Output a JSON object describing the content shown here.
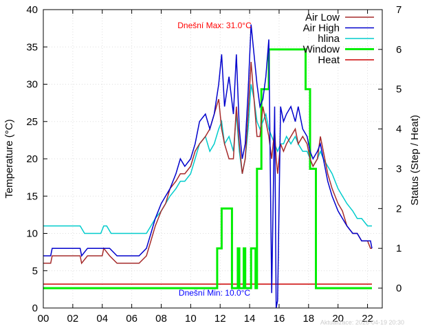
{
  "chart_data": {
    "type": "line",
    "x_axis": {
      "range": [
        0,
        23
      ],
      "ticks": [
        "00",
        "02",
        "04",
        "06",
        "08",
        "10",
        "12",
        "14",
        "16",
        "18",
        "20",
        "22"
      ],
      "tick_values": [
        0,
        2,
        4,
        6,
        8,
        10,
        12,
        14,
        16,
        18,
        20,
        22
      ]
    },
    "y_axis_left": {
      "label": "Temperature (°C)",
      "range": [
        0,
        40
      ],
      "ticks": [
        0,
        5,
        10,
        15,
        20,
        25,
        30,
        35,
        40
      ]
    },
    "y_axis_right": {
      "label": "Status (Step / Heat)",
      "range": [
        -0.5,
        7
      ],
      "ticks": [
        0,
        1,
        2,
        3,
        4,
        5,
        6,
        7
      ]
    },
    "grid": true,
    "legend_position": "top-right",
    "annotations": {
      "max_text": "Dnešní Max: 31.0°C",
      "min_text": "Dnešní Min: 10.0°C",
      "updated_text": "Aktualizace: 2026-04-19 20:30"
    },
    "series": [
      {
        "name": "Air Low",
        "axis": "left",
        "color": "#a52a2a",
        "width": 1.5,
        "x": [
          0,
          0.5,
          0.6,
          1,
          1.4,
          2,
          2.5,
          2.6,
          3,
          3.5,
          4,
          4.1,
          4.5,
          5,
          5.5,
          6,
          6.5,
          7,
          7.3,
          7.6,
          8,
          8.3,
          8.6,
          9,
          9.3,
          9.6,
          10,
          10.3,
          10.6,
          11,
          11.3,
          11.6,
          11.9,
          12.1,
          12.3,
          12.6,
          12.9,
          13.1,
          13.3,
          13.5,
          13.7,
          13.9,
          14.1,
          14.3,
          14.5,
          14.7,
          14.9,
          15.1,
          15.3,
          15.5,
          15.7,
          15.8,
          15.9,
          16.1,
          16.3,
          16.5,
          16.8,
          17.1,
          17.3,
          17.6,
          17.9,
          18.1,
          18.3,
          18.6,
          18.8,
          19,
          19.3,
          19.6,
          20,
          20.3,
          20.6,
          21,
          21.3,
          21.6,
          22,
          22.2,
          22.3
        ],
        "y": [
          6,
          6,
          7,
          7,
          7,
          7,
          7,
          6,
          7,
          7,
          7,
          8,
          7,
          6,
          6,
          6,
          6,
          7,
          9,
          11,
          13,
          14,
          16,
          17,
          18,
          18,
          19,
          21,
          22,
          23,
          24,
          26,
          28,
          24,
          22,
          20,
          20,
          27,
          22,
          18,
          20,
          26,
          33,
          28,
          23,
          23,
          27,
          25,
          23,
          20,
          24,
          20,
          18,
          22,
          21,
          22,
          23,
          24,
          22,
          23,
          22,
          20,
          19,
          20,
          23,
          21,
          18,
          16,
          14,
          13,
          11,
          10,
          10,
          9,
          9,
          8,
          8
        ]
      },
      {
        "name": "Air High",
        "axis": "left",
        "color": "#0000cc",
        "width": 1.5,
        "x": [
          0,
          0.5,
          0.6,
          1,
          1.4,
          2,
          2.5,
          2.6,
          3,
          3.5,
          4,
          4.1,
          4.5,
          5,
          5.5,
          6,
          6.5,
          7,
          7.3,
          7.6,
          8,
          8.3,
          8.6,
          9,
          9.3,
          9.6,
          10,
          10.3,
          10.6,
          11,
          11.3,
          11.6,
          11.9,
          12.1,
          12.3,
          12.6,
          12.9,
          13.1,
          13.3,
          13.5,
          13.7,
          13.9,
          14.1,
          14.3,
          14.5,
          14.7,
          14.9,
          15.1,
          15.3,
          15.5,
          15.7,
          15.8,
          15.9,
          16.1,
          16.3,
          16.5,
          16.8,
          17.1,
          17.3,
          17.6,
          17.9,
          18.1,
          18.3,
          18.6,
          18.8,
          19,
          19.3,
          19.6,
          20,
          20.3,
          20.6,
          21,
          21.3,
          21.6,
          22,
          22.2,
          22.3
        ],
        "y": [
          7,
          7,
          8,
          8,
          8,
          8,
          8,
          7,
          8,
          8,
          8,
          8,
          8,
          7,
          7,
          7,
          7,
          8,
          10,
          12,
          14,
          15,
          16,
          18,
          20,
          19,
          20,
          22,
          25,
          26,
          24,
          26,
          30,
          34,
          27,
          31,
          26,
          34,
          24,
          20,
          22,
          29,
          38,
          34,
          30,
          27,
          28,
          31,
          36,
          2,
          27,
          0,
          1,
          27,
          25,
          26,
          27,
          25,
          27,
          24,
          23,
          21,
          20,
          21,
          22,
          20,
          17,
          15,
          13,
          12,
          11,
          10,
          10,
          9,
          9,
          9,
          8
        ]
      },
      {
        "name": "hlina",
        "axis": "left",
        "color": "#00cccc",
        "width": 1.5,
        "x": [
          0,
          0.5,
          1,
          1.5,
          2,
          2.5,
          2.8,
          3.2,
          3.6,
          3.9,
          4.1,
          4.3,
          4.6,
          5,
          5.5,
          6,
          6.5,
          7,
          7.3,
          7.6,
          8,
          8.3,
          8.6,
          9,
          9.3,
          9.6,
          10,
          10.3,
          10.6,
          11,
          11.3,
          11.6,
          11.9,
          12.1,
          12.3,
          12.6,
          12.9,
          13.1,
          13.3,
          13.5,
          13.7,
          13.9,
          14.1,
          14.3,
          14.5,
          14.7,
          14.9,
          15.1,
          15.3,
          15.5,
          15.7,
          15.9,
          16.1,
          16.3,
          16.5,
          16.8,
          17.1,
          17.3,
          17.6,
          17.9,
          18.1,
          18.3,
          18.6,
          18.8,
          19,
          19.3,
          19.6,
          20,
          20.3,
          20.6,
          21,
          21.3,
          21.6,
          22,
          22.3
        ],
        "y": [
          11,
          11,
          11,
          11,
          11,
          11,
          10,
          10,
          10,
          10,
          11,
          11,
          10,
          10,
          10,
          10,
          10,
          10,
          11,
          12,
          13,
          14,
          15,
          16,
          17,
          17,
          18,
          20,
          22,
          23,
          21,
          22,
          24,
          25,
          22,
          23,
          21,
          26,
          21,
          18,
          20,
          24,
          30,
          28,
          25,
          24,
          25,
          26,
          24,
          23,
          22,
          21,
          22,
          22,
          23,
          22,
          23,
          22,
          21,
          21,
          20,
          19,
          20,
          21,
          20,
          19,
          18,
          16,
          15,
          14,
          13,
          12,
          12,
          11,
          11
        ]
      },
      {
        "name": "Window",
        "axis": "right",
        "color": "#00ee00",
        "width": 3,
        "x": [
          0,
          11.8,
          11.8,
          12.1,
          12.1,
          12.8,
          12.8,
          13.2,
          13.2,
          13.3,
          13.3,
          13.6,
          13.6,
          13.7,
          13.7,
          14.1,
          14.1,
          14.4,
          14.4,
          14.5,
          14.5,
          14.8,
          14.8,
          15.3,
          15.3,
          17.8,
          17.8,
          18.1,
          18.1,
          18.5,
          18.5,
          22.3
        ],
        "y": [
          0,
          0,
          1,
          1,
          2,
          2,
          0,
          0,
          1,
          1,
          0,
          0,
          1,
          1,
          0,
          0,
          1,
          1,
          0,
          0,
          3,
          3,
          5,
          5,
          6,
          6,
          5,
          5,
          3,
          3,
          0,
          0
        ]
      },
      {
        "name": "Heat",
        "axis": "right",
        "color": "#cc0000",
        "width": 1.5,
        "x": [
          0,
          22.3
        ],
        "y": [
          0.1,
          0.1
        ]
      }
    ]
  }
}
